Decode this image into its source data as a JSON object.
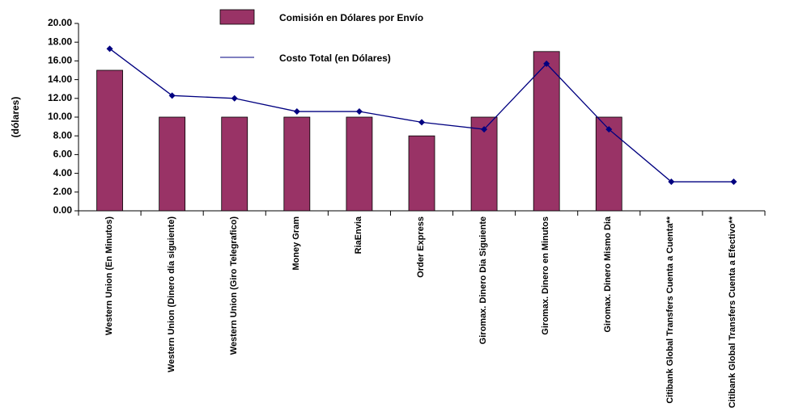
{
  "chart_data": {
    "type": "bar_line",
    "ylabel": "(dólares)",
    "categories": [
      "Western Union (En Minutos)",
      "Western Union (Dinero día siguiente)",
      "Western Union (Giro Telegrafico)",
      "Money Gram",
      "RiaEnvia",
      "Order Express",
      "Giromax. Dinero Dia Siguiente",
      "Giromax. Dinero en Minutos",
      "Giromax. Dinero Mismo Dia",
      "Citibank Global Transfers Cuenta a Cuenta**",
      "Citibank Global Transfers Cuenta a Efectivo**"
    ],
    "series": [
      {
        "name": "Comisión en Dólares por Envío",
        "type": "bar",
        "color": "#993366",
        "values": [
          15,
          10,
          10,
          10,
          10,
          8,
          10,
          17,
          10,
          0,
          0
        ]
      },
      {
        "name": "Costo Total (en Dólares)",
        "type": "line",
        "color": "#000080",
        "values": [
          17.3,
          12.3,
          12.0,
          10.6,
          10.6,
          9.45,
          8.7,
          15.7,
          8.7,
          3.1,
          3.1
        ]
      }
    ],
    "ylim": [
      0,
      20
    ],
    "yticks": [
      {
        "value": 0,
        "label": "0.00"
      },
      {
        "value": 2,
        "label": "2.00"
      },
      {
        "value": 4,
        "label": "4.00"
      },
      {
        "value": 6,
        "label": "6.00"
      },
      {
        "value": 8,
        "label": "8.00"
      },
      {
        "value": 10,
        "label": "10.00"
      },
      {
        "value": 12,
        "label": "12.00"
      },
      {
        "value": 14,
        "label": "14.00"
      },
      {
        "value": 16,
        "label": "16.00"
      },
      {
        "value": 18,
        "label": "18.00"
      },
      {
        "value": 20,
        "label": "20.00"
      }
    ],
    "grid": false,
    "legend": "top"
  }
}
